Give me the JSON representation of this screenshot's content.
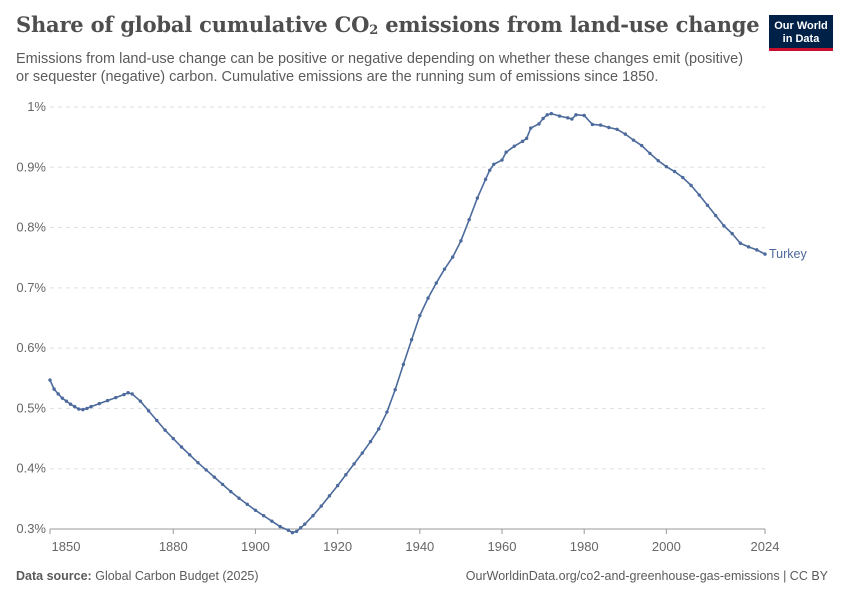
{
  "header": {
    "title": "Share of global cumulative CO",
    "title_sub": "2",
    "title_rest": " emissions from land-use change",
    "subtitle": "Emissions from land-use change can be positive or negative depending on whether these changes emit (positive) or sequester (negative) carbon. Cumulative emissions are the running sum of emissions since 1850."
  },
  "logo": {
    "line1": "Our World",
    "line2": "in Data"
  },
  "footer": {
    "source_label": "Data source:",
    "source_value": "Global Carbon Budget (2025)",
    "url": "OurWorldinData.org/co2-and-greenhouse-gas-emissions | CC BY"
  },
  "colors": {
    "series": "#4c6a9c",
    "grid": "#dddddd",
    "axis": "#999999"
  },
  "chart_data": {
    "type": "line",
    "title": "Share of global cumulative CO₂ emissions from land-use change",
    "xlim": [
      1850,
      2024
    ],
    "ylim": [
      0.3,
      1.0
    ],
    "x_ticks": [
      1850,
      1880,
      1900,
      1920,
      1940,
      1960,
      1980,
      2000,
      2024
    ],
    "y_ticks": [
      0.3,
      0.4,
      0.5,
      0.6,
      0.7,
      0.8,
      0.9,
      1.0
    ],
    "y_tick_labels": [
      "0.3%",
      "0.4%",
      "0.5%",
      "0.6%",
      "0.7%",
      "0.8%",
      "0.9%",
      "1%"
    ],
    "grid": "horizontal dashed",
    "series": [
      {
        "name": "Turkey",
        "points": [
          [
            1850,
            0.547
          ],
          [
            1851,
            0.532
          ],
          [
            1852,
            0.524
          ],
          [
            1853,
            0.517
          ],
          [
            1854,
            0.512
          ],
          [
            1855,
            0.507
          ],
          [
            1856,
            0.503
          ],
          [
            1857,
            0.499
          ],
          [
            1858,
            0.498
          ],
          [
            1859,
            0.5
          ],
          [
            1860,
            0.503
          ],
          [
            1862,
            0.508
          ],
          [
            1864,
            0.513
          ],
          [
            1866,
            0.518
          ],
          [
            1868,
            0.523
          ],
          [
            1869,
            0.526
          ],
          [
            1870,
            0.524
          ],
          [
            1872,
            0.512
          ],
          [
            1874,
            0.496
          ],
          [
            1876,
            0.48
          ],
          [
            1878,
            0.464
          ],
          [
            1880,
            0.45
          ],
          [
            1882,
            0.436
          ],
          [
            1884,
            0.423
          ],
          [
            1886,
            0.41
          ],
          [
            1888,
            0.398
          ],
          [
            1890,
            0.386
          ],
          [
            1892,
            0.374
          ],
          [
            1894,
            0.362
          ],
          [
            1896,
            0.351
          ],
          [
            1898,
            0.341
          ],
          [
            1900,
            0.331
          ],
          [
            1902,
            0.322
          ],
          [
            1904,
            0.313
          ],
          [
            1906,
            0.304
          ],
          [
            1908,
            0.298
          ],
          [
            1909,
            0.294
          ],
          [
            1910,
            0.296
          ],
          [
            1911,
            0.302
          ],
          [
            1912,
            0.308
          ],
          [
            1914,
            0.322
          ],
          [
            1916,
            0.338
          ],
          [
            1918,
            0.355
          ],
          [
            1920,
            0.372
          ],
          [
            1922,
            0.39
          ],
          [
            1924,
            0.408
          ],
          [
            1926,
            0.426
          ],
          [
            1928,
            0.445
          ],
          [
            1930,
            0.466
          ],
          [
            1932,
            0.494
          ],
          [
            1934,
            0.531
          ],
          [
            1936,
            0.573
          ],
          [
            1938,
            0.614
          ],
          [
            1940,
            0.654
          ],
          [
            1942,
            0.683
          ],
          [
            1944,
            0.708
          ],
          [
            1946,
            0.731
          ],
          [
            1948,
            0.751
          ],
          [
            1950,
            0.778
          ],
          [
            1952,
            0.813
          ],
          [
            1954,
            0.849
          ],
          [
            1956,
            0.88
          ],
          [
            1957,
            0.895
          ],
          [
            1958,
            0.905
          ],
          [
            1960,
            0.912
          ],
          [
            1961,
            0.925
          ],
          [
            1963,
            0.935
          ],
          [
            1965,
            0.943
          ],
          [
            1966,
            0.948
          ],
          [
            1967,
            0.965
          ],
          [
            1969,
            0.972
          ],
          [
            1970,
            0.981
          ],
          [
            1971,
            0.987
          ],
          [
            1972,
            0.989
          ],
          [
            1974,
            0.985
          ],
          [
            1976,
            0.982
          ],
          [
            1977,
            0.98
          ],
          [
            1978,
            0.987
          ],
          [
            1980,
            0.986
          ],
          [
            1982,
            0.971
          ],
          [
            1984,
            0.97
          ],
          [
            1986,
            0.966
          ],
          [
            1988,
            0.963
          ],
          [
            1990,
            0.955
          ],
          [
            1992,
            0.945
          ],
          [
            1994,
            0.936
          ],
          [
            1996,
            0.923
          ],
          [
            1998,
            0.911
          ],
          [
            2000,
            0.901
          ],
          [
            2002,
            0.893
          ],
          [
            2004,
            0.883
          ],
          [
            2006,
            0.87
          ],
          [
            2008,
            0.854
          ],
          [
            2010,
            0.837
          ],
          [
            2012,
            0.82
          ],
          [
            2014,
            0.803
          ],
          [
            2016,
            0.79
          ],
          [
            2018,
            0.774
          ],
          [
            2020,
            0.768
          ],
          [
            2022,
            0.763
          ],
          [
            2024,
            0.756
          ]
        ]
      }
    ]
  }
}
